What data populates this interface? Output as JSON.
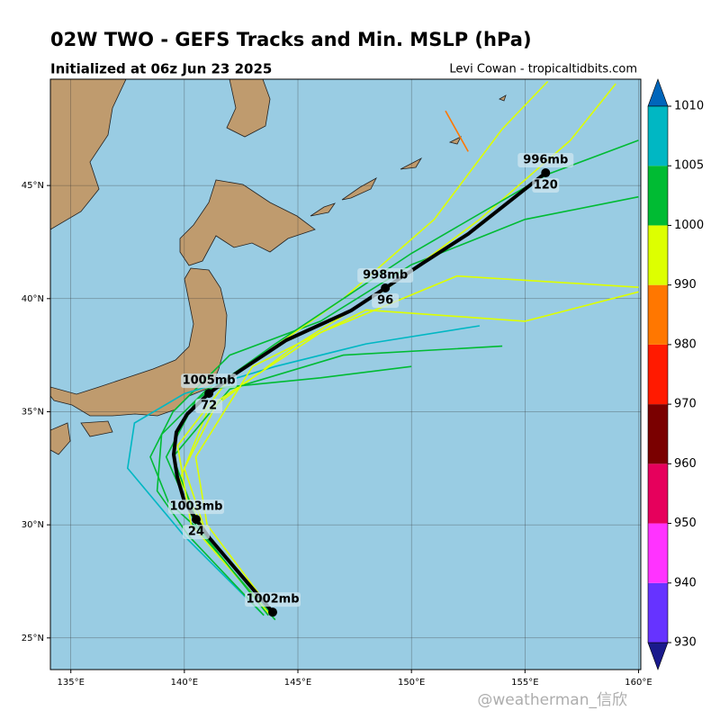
{
  "title": "02W TWO - GEFS Tracks and Min. MSLP (hPa)",
  "subtitle": "Initialized at 06z Jun 23 2025",
  "credit": "Levi Cowan - tropicaltidbits.com",
  "watermark": "@weatherman_信欣",
  "map": {
    "lon_range": [
      134.1,
      160.1
    ],
    "lat_range": [
      23.6,
      49.7
    ],
    "lon_ticks": [
      {
        "value": 135,
        "label": "135°E"
      },
      {
        "value": 140,
        "label": "140°E"
      },
      {
        "value": 145,
        "label": "145°E"
      },
      {
        "value": 150,
        "label": "150°E"
      },
      {
        "value": 155,
        "label": "155°E"
      },
      {
        "value": 160,
        "label": "160°E"
      }
    ],
    "lat_ticks": [
      {
        "value": 25,
        "label": "25°N"
      },
      {
        "value": 30,
        "label": "30°N"
      },
      {
        "value": 35,
        "label": "35°N"
      },
      {
        "value": 40,
        "label": "40°N"
      },
      {
        "value": 45,
        "label": "45°N"
      }
    ]
  },
  "ensemble_tracks": [
    {
      "color": "#00bb33",
      "lon": [
        143.9,
        141.5,
        139.3,
        138.5,
        139.5,
        142,
        146,
        150,
        155,
        160
      ],
      "lat": [
        26.0,
        29,
        31,
        33,
        35,
        37.5,
        39,
        41.5,
        43.5,
        44.5
      ]
    },
    {
      "color": "#ddff00",
      "lon": [
        144,
        141,
        139.8,
        141,
        145,
        149,
        153,
        157,
        159
      ],
      "lat": [
        26,
        29.5,
        32,
        35,
        38,
        40.5,
        43.5,
        47,
        49.5
      ]
    },
    {
      "color": "#00b7c3",
      "lon": [
        143.5,
        140,
        137.5,
        137.8,
        140,
        144,
        148,
        153
      ],
      "lat": [
        26,
        29.5,
        32.5,
        34.5,
        35.8,
        37,
        38,
        38.8
      ]
    },
    {
      "color": "#00bb33",
      "lon": [
        144,
        140.8,
        139.5,
        142,
        147,
        154
      ],
      "lat": [
        25.8,
        29.5,
        33,
        36,
        37.5,
        37.9
      ]
    },
    {
      "color": "#ddff00",
      "lon": [
        143.8,
        140.3,
        139.7,
        142,
        147,
        151,
        154,
        156
      ],
      "lat": [
        26,
        30,
        33.5,
        36.5,
        40,
        43.5,
        47.5,
        49.6
      ]
    },
    {
      "color": "#00bb33",
      "lon": [
        143.7,
        140.5,
        139.2,
        140.5,
        144,
        150,
        156,
        160
      ],
      "lat": [
        26,
        30,
        33,
        35.5,
        38,
        42,
        45.5,
        47
      ]
    },
    {
      "color": "#ddff00",
      "lon": [
        144,
        141,
        140,
        141.5,
        146,
        152,
        160
      ],
      "lat": [
        26,
        29.5,
        32.5,
        35.5,
        38.5,
        41,
        40.5
      ]
    },
    {
      "color": "#00bb33",
      "lon": [
        143.5,
        140.2,
        138.8,
        139,
        141,
        146,
        150
      ],
      "lat": [
        26,
        29.5,
        31.5,
        34,
        36,
        36.5,
        37
      ]
    },
    {
      "color": "#ddff00",
      "lon": [
        144,
        141,
        140.5,
        143,
        148,
        155,
        160
      ],
      "lat": [
        26,
        30,
        33,
        37,
        39.5,
        39,
        40.3
      ]
    },
    {
      "color": "#ff7700",
      "lon": [
        151.5,
        152.5
      ],
      "lat": [
        48.3,
        46.5
      ]
    }
  ],
  "mean_track": {
    "lon": [
      143.89,
      142.19,
      141.08,
      140.52,
      140.01,
      139.69,
      139.53,
      139.65,
      140.13,
      141.08,
      142.27,
      144.49,
      147.34,
      148.85,
      150.52,
      152.5,
      155.91
    ],
    "lat": [
      26.14,
      28.13,
      29.45,
      30.24,
      31.0,
      32.11,
      33.11,
      34.1,
      34.9,
      35.81,
      36.69,
      38.16,
      39.47,
      40.47,
      41.58,
      42.86,
      45.56
    ]
  },
  "mean_track_labels": [
    {
      "lon": 143.89,
      "lat": 26.14,
      "pressure": "1002mb"
    },
    {
      "lon": 140.52,
      "lat": 30.24,
      "pressure": "1003mb",
      "hour": "24"
    },
    {
      "lon": 141.08,
      "lat": 35.81,
      "pressure": "1005mb",
      "hour": "72"
    },
    {
      "lon": 148.85,
      "lat": 40.47,
      "pressure": "998mb",
      "hour": "96"
    },
    {
      "lon": 155.91,
      "lat": 45.56,
      "pressure": "996mb",
      "hour": "120"
    }
  ],
  "colorbar": {
    "ticks": [
      930,
      940,
      950,
      960,
      970,
      980,
      990,
      1000,
      1005,
      1010
    ],
    "colors": [
      "#6633ff",
      "#ff33ff",
      "#e6005c",
      "#7a0000",
      "#ff1a00",
      "#ff7700",
      "#ddff00",
      "#00bb33",
      "#00b7c3"
    ],
    "under_color": "#1a1a8c",
    "over_color": "#0066bb"
  }
}
